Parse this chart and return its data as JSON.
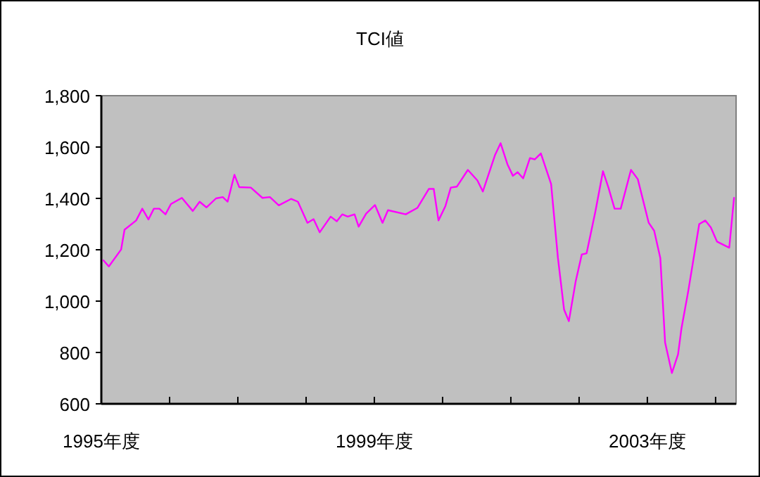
{
  "chart_data": {
    "type": "line",
    "title": "TCI値",
    "x": [
      1995.03,
      1995.11,
      1995.29,
      1995.34,
      1995.51,
      1995.6,
      1995.69,
      1995.77,
      1995.85,
      1995.94,
      1996.02,
      1996.18,
      1996.34,
      1996.44,
      1996.54,
      1996.68,
      1996.78,
      1996.85,
      1996.95,
      1997.02,
      1997.19,
      1997.36,
      1997.47,
      1997.6,
      1997.78,
      1997.88,
      1998.02,
      1998.11,
      1998.2,
      1998.36,
      1998.45,
      1998.53,
      1998.61,
      1998.71,
      1998.77,
      1998.88,
      1999.01,
      1999.12,
      1999.2,
      1999.46,
      1999.63,
      1999.8,
      1999.87,
      1999.94,
      2000.04,
      2000.12,
      2000.21,
      2000.37,
      2000.51,
      2000.59,
      2000.77,
      2000.85,
      2000.95,
      2001.03,
      2001.1,
      2001.18,
      2001.28,
      2001.35,
      2001.44,
      2001.59,
      2001.69,
      2001.78,
      2001.85,
      2001.95,
      2002.04,
      2002.11,
      2002.24,
      2002.35,
      2002.43,
      2002.52,
      2002.61,
      2002.76,
      2002.86,
      2003.02,
      2003.1,
      2003.19,
      2003.26,
      2003.36,
      2003.45,
      2003.5,
      2003.6,
      2003.76,
      2003.85,
      2003.93,
      2004.02,
      2004.2,
      2004.27
    ],
    "series": [
      {
        "color": "#ff00ff",
        "values": [
          1159,
          1135,
          1201,
          1278,
          1314,
          1360,
          1318,
          1360,
          1360,
          1338,
          1378,
          1402,
          1351,
          1387,
          1365,
          1400,
          1405,
          1387,
          1492,
          1444,
          1442,
          1402,
          1405,
          1373,
          1398,
          1387,
          1305,
          1319,
          1268,
          1329,
          1311,
          1338,
          1329,
          1338,
          1290,
          1341,
          1374,
          1305,
          1354,
          1338,
          1363,
          1437,
          1437,
          1314,
          1369,
          1442,
          1446,
          1511,
          1470,
          1427,
          1570,
          1615,
          1533,
          1488,
          1502,
          1478,
          1557,
          1552,
          1575,
          1456,
          1168,
          967,
          922,
          1077,
          1182,
          1186,
          1351,
          1506,
          1442,
          1360,
          1360,
          1511,
          1475,
          1305,
          1274,
          1168,
          839,
          720,
          793,
          894,
          1040,
          1300,
          1314,
          1287,
          1232,
          1208,
          1402
        ]
      }
    ],
    "xlim": [
      1995,
      2004.3
    ],
    "xticks": [
      {
        "value": 1995,
        "label": "1995年度"
      },
      {
        "value": 1996,
        "label": null
      },
      {
        "value": 1997,
        "label": null
      },
      {
        "value": 1998,
        "label": null
      },
      {
        "value": 1999,
        "label": "1999年度"
      },
      {
        "value": 2000,
        "label": null
      },
      {
        "value": 2001,
        "label": null
      },
      {
        "value": 2002,
        "label": null
      },
      {
        "value": 2003,
        "label": "2003年度"
      },
      {
        "value": 2004,
        "label": null
      }
    ],
    "ylim": [
      600,
      1800
    ],
    "yticks": [
      {
        "value": 600,
        "label": "600"
      },
      {
        "value": 800,
        "label": "800"
      },
      {
        "value": 1000,
        "label": "1,000"
      },
      {
        "value": 1200,
        "label": "1,200"
      },
      {
        "value": 1400,
        "label": "1,400"
      },
      {
        "value": 1600,
        "label": "1,600"
      },
      {
        "value": 1800,
        "label": "1,800"
      }
    ],
    "grid": false
  }
}
